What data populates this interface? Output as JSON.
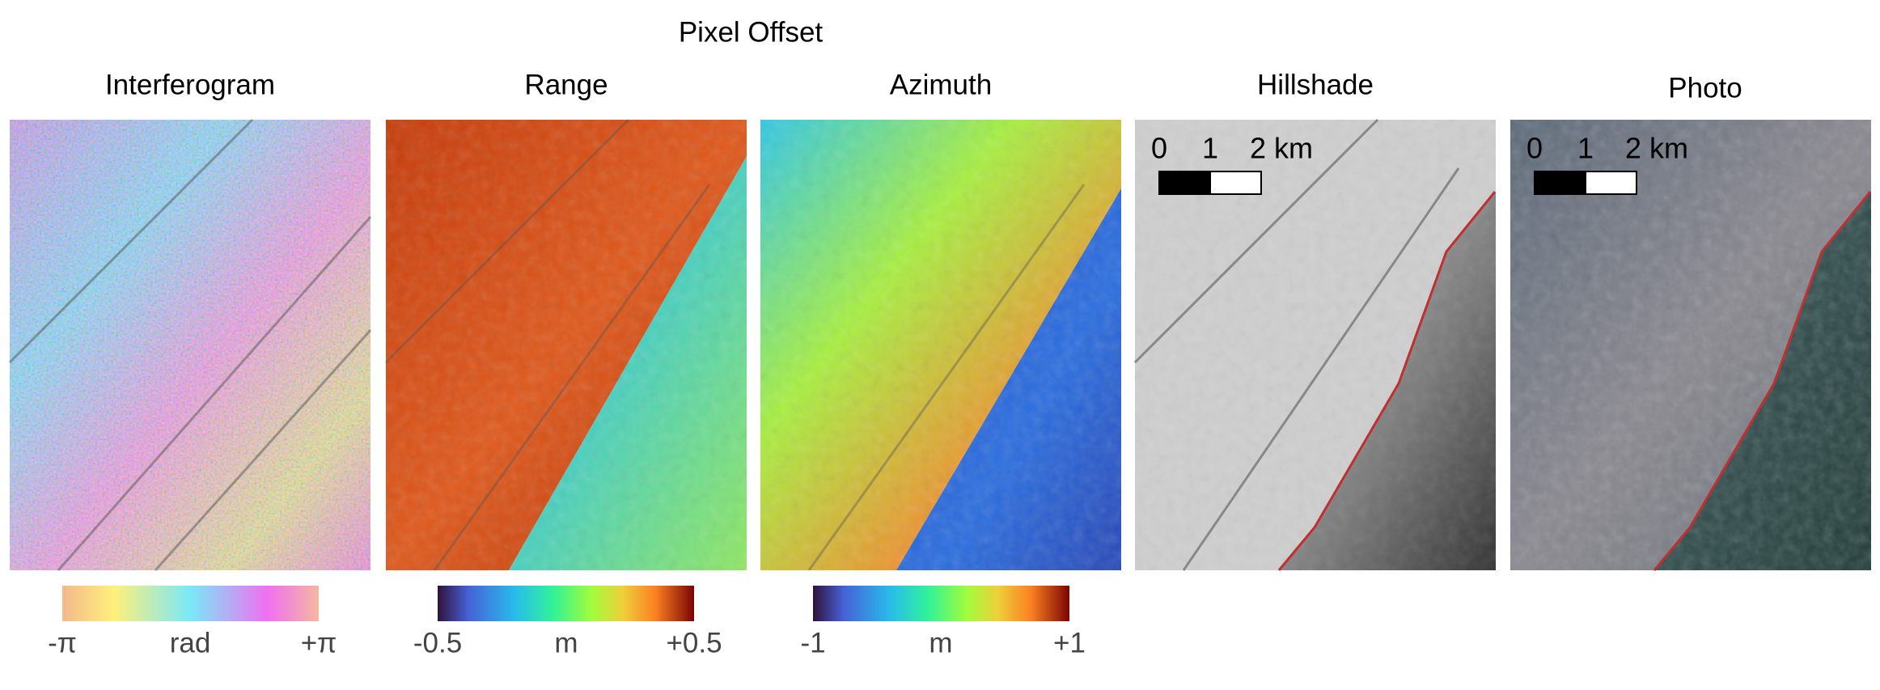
{
  "title": "Pixel Offset",
  "panels": [
    {
      "title": "Interferogram"
    },
    {
      "title": "Range"
    },
    {
      "title": "Azimuth"
    },
    {
      "title": "Hillshade"
    },
    {
      "title": "Photo"
    }
  ],
  "colorbars": [
    {
      "min": "-π",
      "unit": "rad",
      "max": "+π"
    },
    {
      "min": "-0.5",
      "unit": "m",
      "max": "+0.5"
    },
    {
      "min": "-1",
      "unit": "m",
      "max": "+1"
    }
  ],
  "scale_bars": [
    {
      "labels": [
        "0",
        "1",
        "2 km"
      ]
    },
    {
      "labels": [
        "0",
        "1",
        "2 km"
      ]
    }
  ]
}
